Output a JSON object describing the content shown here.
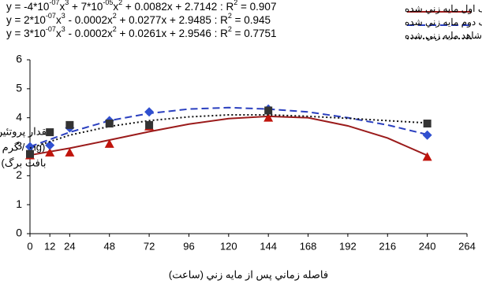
{
  "chart_data": {
    "type": "scatter",
    "x_label": "فاصله زماني پس از مايه زني (ساعت)",
    "y_label": [
      "مقدار پروتئين",
      "(mg / گرم",
      "بافت برگ)"
    ],
    "x": [
      0,
      12,
      24,
      48,
      72,
      144,
      240
    ],
    "trend_x": [
      0,
      24,
      48,
      72,
      96,
      120,
      144,
      168,
      192,
      216,
      240
    ],
    "xlim": [
      0,
      264
    ],
    "xticks": [
      0,
      12,
      24,
      48,
      72,
      96,
      120,
      144,
      168,
      192,
      216,
      240,
      264
    ],
    "ylim": [
      0,
      6
    ],
    "yticks": [
      0,
      1,
      2,
      3,
      4,
      5,
      6
    ],
    "grid": false,
    "legend": "top-right",
    "series": [
      {
        "name": "برگ اول مايه زني شده",
        "color": "#9b1b1b",
        "marker_color": "#c0140c",
        "marker": "triangle",
        "line_style": "solid",
        "values": [
          2.7,
          2.8,
          2.8,
          3.1,
          3.7,
          4.0,
          2.65
        ],
        "trend": [
          2.71,
          2.95,
          3.23,
          3.52,
          3.78,
          3.97,
          4.05,
          4.0,
          3.72,
          3.3,
          2.7
        ],
        "equation": [
          "y = -4*10",
          "-07",
          "x",
          "3",
          " + 7*10",
          "-05",
          "x",
          "2",
          " + 0.0082x + 2.7142 : R",
          "2",
          " = 0.907"
        ]
      },
      {
        "name": "برگ دوم مايه زني شده",
        "color": "#2a3fbf",
        "marker_color": "#3050d0",
        "marker": "diamond",
        "line_style": "dashed",
        "values": [
          3.0,
          3.05,
          3.65,
          3.9,
          4.2,
          4.3,
          3.4
        ],
        "trend": [
          3.0,
          3.5,
          3.9,
          4.15,
          4.3,
          4.35,
          4.3,
          4.2,
          4.0,
          3.75,
          3.42
        ],
        "equation": [
          "y = 2*10",
          "-07",
          "x",
          "3",
          " - 0.0002x",
          "2",
          " + 0.0277x + 2.9485 : R",
          "2",
          " = 0.945"
        ]
      },
      {
        "name": "برگ شاهد مايه زني شده",
        "color": "#111111",
        "marker_color": "#333333",
        "marker": "square",
        "line_style": "dotted",
        "values": [
          2.75,
          3.5,
          3.75,
          3.8,
          3.75,
          4.25,
          3.8
        ],
        "trend": [
          2.95,
          3.4,
          3.7,
          3.9,
          4.03,
          4.1,
          4.1,
          4.05,
          3.98,
          3.9,
          3.82
        ],
        "equation": [
          "y = 3*10",
          "-07",
          "x",
          "3",
          " - 0.0002x",
          "2",
          " + 0.0261x + 2.9546 : R",
          "2",
          " = 0.7751"
        ]
      }
    ]
  }
}
